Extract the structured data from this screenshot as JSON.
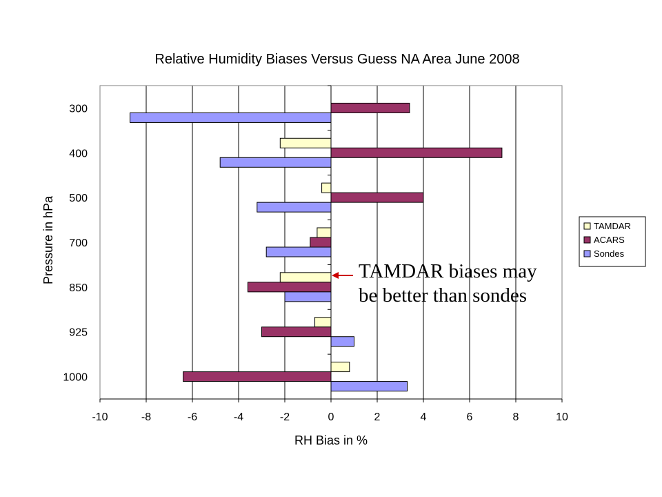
{
  "chart_data": {
    "type": "bar",
    "orientation": "horizontal",
    "title": "Relative Humidity Biases Versus Guess NA Area June 2008",
    "xlabel": "RH Bias in %",
    "ylabel": "Pressure in hPa",
    "xlim": [
      -10,
      10
    ],
    "xticks": [
      -10,
      -8,
      -6,
      -4,
      -2,
      0,
      2,
      4,
      6,
      8,
      10
    ],
    "categories": [
      "300",
      "400",
      "500",
      "700",
      "850",
      "925",
      "1000"
    ],
    "grid": "vertical",
    "legend_position": "right",
    "series": [
      {
        "name": "TAMDAR",
        "color": "#ffffcc",
        "values": [
          null,
          -2.2,
          -0.4,
          -0.6,
          -2.2,
          -0.7,
          0.8
        ]
      },
      {
        "name": "ACARS",
        "color": "#993366",
        "values": [
          3.4,
          7.4,
          4.0,
          -0.9,
          -3.6,
          -3.0,
          -6.4
        ]
      },
      {
        "name": "Sondes",
        "color": "#9999ff",
        "values": [
          -8.7,
          -4.8,
          -3.2,
          -2.8,
          -2.0,
          1.0,
          3.3
        ]
      }
    ]
  },
  "annotation": {
    "line1": "TAMDAR  biases may",
    "line2": "be better than sondes",
    "arrow_color": "#cc0000"
  }
}
